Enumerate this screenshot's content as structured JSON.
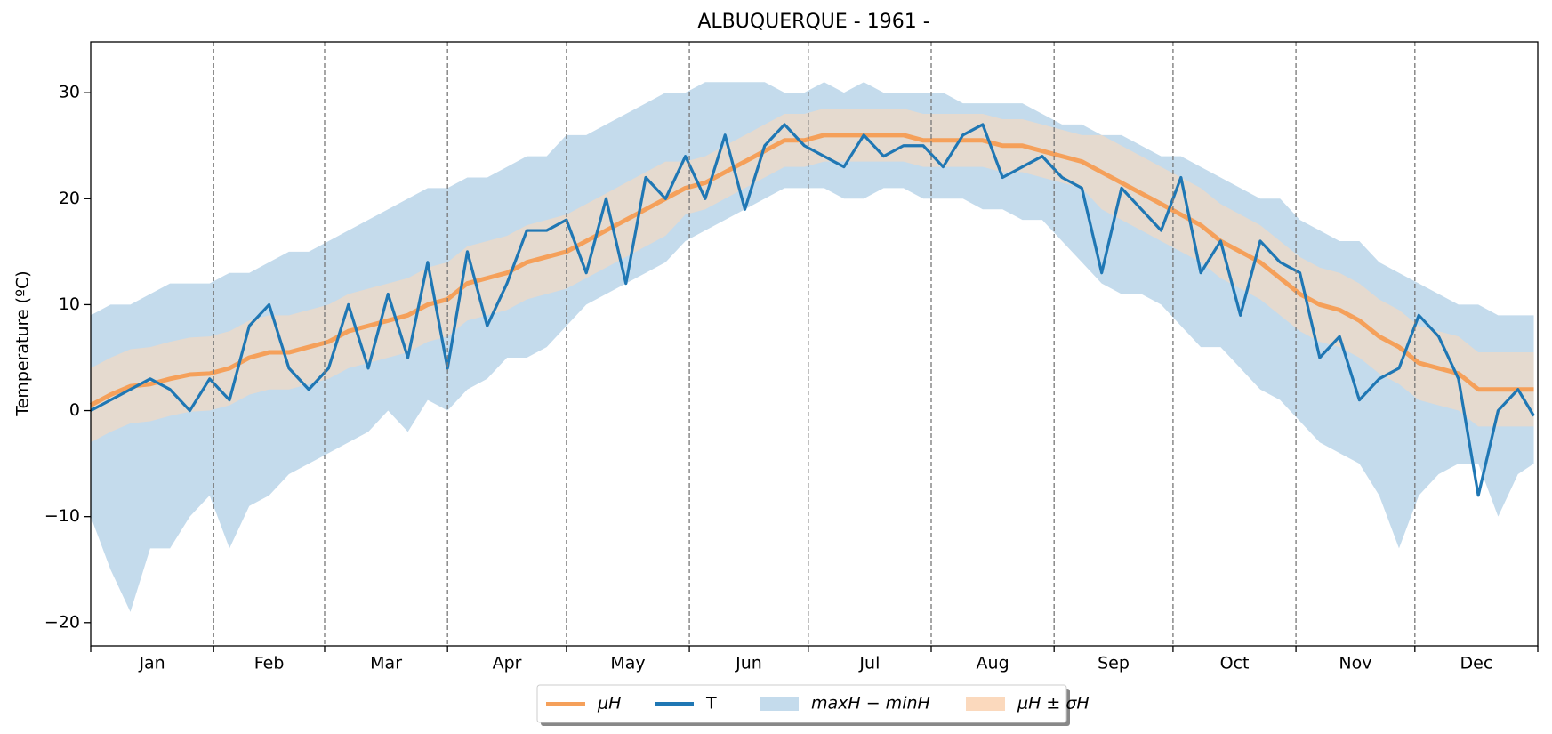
{
  "chart_data": {
    "type": "line",
    "title": "ALBUQUERQUE - 1961 -",
    "y_label": "Temperature (ºC)",
    "x": [
      0,
      5,
      10,
      15,
      20,
      25,
      30,
      35,
      40,
      45,
      50,
      55,
      60,
      65,
      70,
      75,
      80,
      85,
      90,
      95,
      100,
      105,
      110,
      115,
      120,
      125,
      130,
      135,
      140,
      145,
      150,
      155,
      160,
      165,
      170,
      175,
      180,
      185,
      190,
      195,
      200,
      205,
      210,
      215,
      220,
      225,
      230,
      235,
      240,
      245,
      250,
      255,
      260,
      265,
      270,
      275,
      280,
      285,
      290,
      295,
      300,
      305,
      310,
      315,
      320,
      325,
      330,
      335,
      340,
      345,
      350,
      355,
      360,
      364
    ],
    "xlim": [
      0,
      365
    ],
    "ylim": [
      -22.2,
      34.8
    ],
    "yticks": [
      {
        "value": -20,
        "label": "−20"
      },
      {
        "value": -10,
        "label": "−10"
      },
      0,
      10,
      20,
      30
    ],
    "month_boundaries": [
      31,
      59,
      90,
      120,
      151,
      181,
      212,
      243,
      273,
      304,
      334
    ],
    "month_labels": [
      {
        "value": 15.5,
        "label": "Jan"
      },
      {
        "value": 45,
        "label": "Feb"
      },
      {
        "value": 74.5,
        "label": "Mar"
      },
      {
        "value": 105,
        "label": "Apr"
      },
      {
        "value": 135.5,
        "label": "May"
      },
      {
        "value": 166,
        "label": "Jun"
      },
      {
        "value": 196.5,
        "label": "Jul"
      },
      {
        "value": 227.5,
        "label": "Aug"
      },
      {
        "value": 258,
        "label": "Sep"
      },
      {
        "value": 288.5,
        "label": "Oct"
      },
      {
        "value": 319,
        "label": "Nov"
      },
      {
        "value": 349.5,
        "label": "Dec"
      }
    ],
    "series": [
      {
        "name": "μH",
        "color": "#f5a05a",
        "values": [
          0.5,
          1.5,
          2.3,
          2.5,
          3,
          3.4,
          3.5,
          4,
          5,
          5.5,
          5.5,
          6,
          6.5,
          7.5,
          8,
          8.5,
          9,
          10,
          10.5,
          12,
          12.5,
          13,
          14,
          14.5,
          15,
          16,
          17,
          18,
          19,
          20,
          21,
          21.5,
          22.5,
          23.5,
          24.5,
          25.5,
          25.5,
          26,
          26,
          26,
          26,
          26,
          25.5,
          25.5,
          25.5,
          25.5,
          25,
          25,
          24.5,
          24,
          23.5,
          22.5,
          21.5,
          20.5,
          19.5,
          18.5,
          17.5,
          16,
          15,
          14,
          12.5,
          11,
          10,
          9.5,
          8.5,
          7,
          6,
          4.5,
          4,
          3.5,
          2,
          2,
          2,
          2
        ]
      },
      {
        "name": "T",
        "color": "#1f77b4",
        "values": [
          0,
          1,
          2,
          3,
          2,
          0,
          3,
          1,
          8,
          10,
          4,
          2,
          4,
          10,
          4,
          11,
          5,
          14,
          4,
          15,
          8,
          12,
          17,
          17,
          18,
          13,
          20,
          12,
          22,
          20,
          24,
          20,
          26,
          19,
          25,
          27,
          25,
          24,
          23,
          26,
          24,
          25,
          25,
          23,
          26,
          27,
          22,
          23,
          24,
          22,
          21,
          13,
          21,
          19,
          17,
          22,
          13,
          16,
          9,
          16,
          14,
          13,
          5,
          7,
          1,
          3,
          4,
          9,
          7,
          3,
          -8,
          0,
          2,
          -0.5
        ]
      }
    ],
    "bands": [
      {
        "name": "maxH − minH",
        "color": "#c4dbec",
        "upper": [
          9,
          10,
          10,
          11,
          12,
          12,
          12,
          13,
          13,
          14,
          15,
          15,
          16,
          17,
          18,
          19,
          20,
          21,
          21,
          22,
          22,
          23,
          24,
          24,
          26,
          26,
          27,
          28,
          29,
          30,
          30,
          31,
          31,
          31,
          31,
          30,
          30,
          31,
          30,
          31,
          30,
          30,
          30,
          30,
          29,
          29,
          29,
          29,
          28,
          27,
          27,
          26,
          26,
          25,
          24,
          24,
          23,
          22,
          21,
          20,
          20,
          18,
          17,
          16,
          16,
          14,
          13,
          12,
          11,
          10,
          10,
          9,
          9,
          9
        ],
        "lower": [
          -10,
          -15,
          -19,
          -13,
          -13,
          -10,
          -8,
          -13,
          -9,
          -8,
          -6,
          -5,
          -4,
          -3,
          -2,
          0,
          -2,
          1,
          0,
          2,
          3,
          5,
          5,
          6,
          8,
          10,
          11,
          12,
          13,
          14,
          16,
          17,
          18,
          19,
          20,
          21,
          21,
          21,
          20,
          20,
          21,
          21,
          20,
          20,
          20,
          19,
          19,
          18,
          18,
          16,
          14,
          12,
          11,
          11,
          10,
          8,
          6,
          6,
          4,
          2,
          1,
          -1,
          -3,
          -4,
          -5,
          -8,
          -13,
          -8,
          -6,
          -5,
          -5,
          -10,
          -6,
          -5
        ]
      },
      {
        "name": "μH ± σH",
        "color": "#fbd9bd",
        "upper": [
          4,
          5,
          5.8,
          6,
          6.5,
          6.9,
          7,
          7.5,
          8.5,
          9,
          9,
          9.5,
          10,
          11,
          11.5,
          12,
          12.5,
          13.5,
          14,
          15.5,
          16,
          16.5,
          17.5,
          18,
          18.5,
          19.5,
          20.5,
          21.5,
          22.5,
          23.5,
          23.5,
          24,
          25,
          26,
          27,
          28,
          28,
          28.5,
          28.5,
          28.5,
          28.5,
          28.5,
          28,
          28,
          28,
          28,
          27.5,
          27.5,
          27,
          26.5,
          26,
          26,
          25,
          24,
          23,
          22,
          21,
          19.5,
          18.5,
          17.5,
          16,
          14.5,
          13.5,
          13,
          12,
          10.5,
          9.5,
          8,
          7.5,
          7,
          5.5,
          5.5,
          5.5,
          5.5
        ],
        "lower": [
          -3,
          -2,
          -1.2,
          -1,
          -0.5,
          -0.1,
          0,
          0.5,
          1.5,
          2,
          2,
          2.5,
          3,
          4,
          4.5,
          5,
          5.5,
          6.5,
          7,
          8.5,
          9,
          9.5,
          10.5,
          11,
          11.5,
          12.5,
          13.5,
          14.5,
          15.5,
          16.5,
          18.5,
          19,
          20,
          21,
          22,
          23,
          23,
          23.5,
          23.5,
          23.5,
          23.5,
          23.5,
          23,
          23,
          23,
          23,
          22.5,
          22.5,
          22,
          21.5,
          21,
          19,
          18,
          17,
          16,
          15,
          14,
          12.5,
          11.5,
          10.5,
          9,
          7.5,
          6.5,
          6,
          5,
          3.5,
          2.5,
          1,
          0.5,
          0,
          -1.5,
          -1.5,
          -1.5,
          -1.5
        ]
      }
    ],
    "legend": "lower center"
  }
}
